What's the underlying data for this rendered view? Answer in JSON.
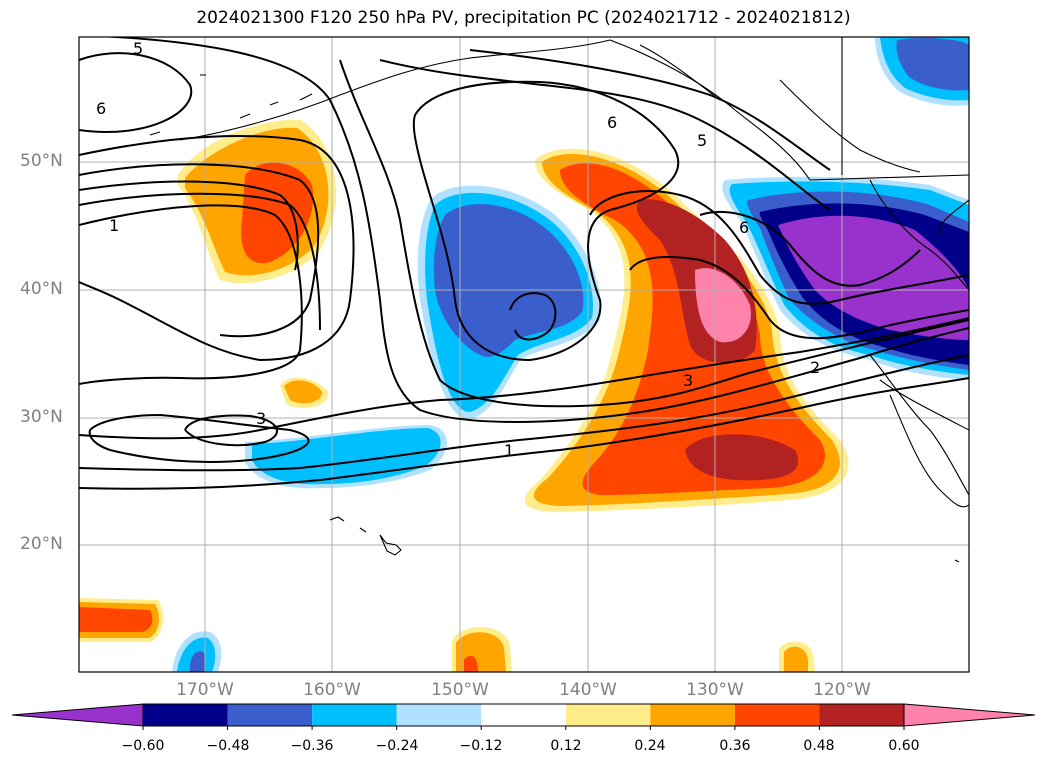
{
  "title": "2024021300 F120 250 hPa PV, precipitation PC (2024021712 - 2024021812)",
  "axes": {
    "lat_labels": [
      "50°N",
      "40°N",
      "30°N",
      "20°N"
    ],
    "lon_labels": [
      "170°W",
      "160°W",
      "150°W",
      "140°W",
      "130°W",
      "120°W"
    ]
  },
  "colorbar": {
    "ticks": [
      "−0.60",
      "−0.48",
      "−0.36",
      "−0.24",
      "−0.12",
      "0.12",
      "0.24",
      "0.36",
      "0.48",
      "0.60"
    ],
    "colors": [
      "#9932CC",
      "#00008B",
      "#3A5FCD",
      "#00BFFF",
      "#B0E2FF",
      "#FFFFFF",
      "#FFEC8B",
      "#FFA500",
      "#FF4500",
      "#B22222",
      "#FF82AB"
    ]
  },
  "pv_contour_labels": [
    "5",
    "6",
    "1",
    "6",
    "5",
    "6",
    "3",
    "2",
    "1",
    "3"
  ],
  "chart_data": {
    "type": "map",
    "title": "2024021300 F120 250 hPa PV, precipitation PC (2024021712 - 2024021812)",
    "fields": [
      "250 hPa PV (contours)",
      "precipitation PC (shaded)"
    ],
    "lon_range": [
      -180,
      -110
    ],
    "lat_range": [
      10,
      60
    ],
    "pv_contour_levels": [
      1,
      2,
      3,
      5,
      6
    ],
    "color_levels": [
      -0.6,
      -0.48,
      -0.36,
      -0.24,
      -0.12,
      0.12,
      0.24,
      0.36,
      0.48,
      0.6
    ]
  }
}
